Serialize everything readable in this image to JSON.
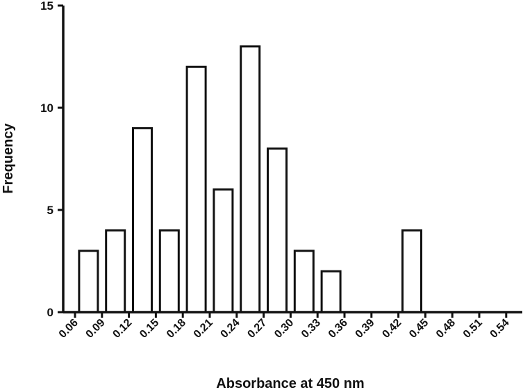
{
  "chart_data": {
    "type": "bar",
    "title": "",
    "xlabel": "Absorbance at 450 nm",
    "ylabel": "Frequency",
    "ylim": [
      0,
      15
    ],
    "yticks": [
      "0",
      "5",
      "10",
      "15"
    ],
    "categories": [
      "0.06",
      "0.09",
      "0.12",
      "0.15",
      "0.18",
      "0.21",
      "0.24",
      "0.27",
      "0.30",
      "0.33",
      "0.36",
      "0.39",
      "0.42",
      "0.45",
      "0.48",
      "0.51",
      "0.54"
    ],
    "values": [
      0,
      3,
      4,
      9,
      4,
      12,
      6,
      13,
      8,
      3,
      2,
      0,
      0,
      4,
      0,
      0,
      0
    ],
    "grid": false,
    "legend": "none"
  }
}
